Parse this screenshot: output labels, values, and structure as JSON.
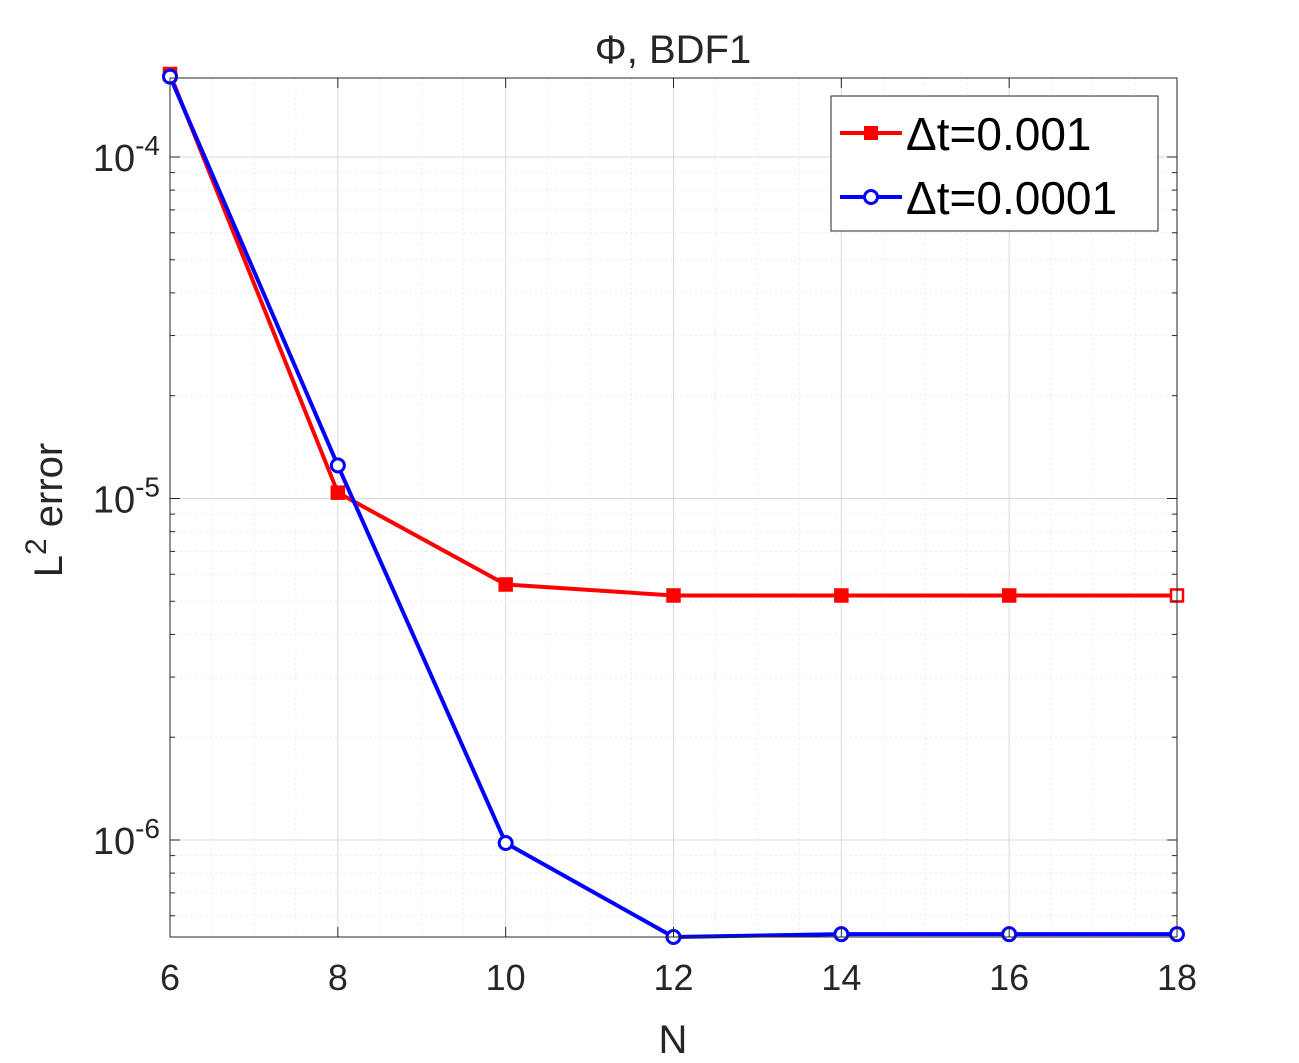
{
  "chart_data": {
    "type": "line",
    "title": "Φ, BDF1",
    "xlabel": "N",
    "ylabel": {
      "base": "L",
      "sup": "2",
      "rest": " error"
    },
    "x": [
      6,
      8,
      10,
      12,
      14,
      16,
      18
    ],
    "xlim": [
      6,
      18
    ],
    "xticks": [
      "6",
      "8",
      "10",
      "12",
      "14",
      "16",
      "18"
    ],
    "yscale": "log",
    "ylim": [
      5.2e-07,
      0.00018
    ],
    "yticks": [
      {
        "value": 1e-06,
        "base": "10",
        "exp": "-6"
      },
      {
        "value": 1e-05,
        "base": "10",
        "exp": "-5"
      },
      {
        "value": 0.0001,
        "base": "10",
        "exp": "-4"
      }
    ],
    "grid": true,
    "minor_grid": true,
    "legend_position": "top-right",
    "series": [
      {
        "name": "Δt=0.001",
        "color": "#ff0000",
        "marker": "square",
        "values": [
          0.000175,
          1.04e-05,
          5.6e-06,
          5.2e-06,
          5.2e-06,
          5.2e-06,
          5.2e-06
        ]
      },
      {
        "name": "Δt=0.0001",
        "color": "#0000ff",
        "marker": "circle",
        "values": [
          0.000172,
          1.25e-05,
          9.8e-07,
          5.2e-07,
          5.3e-07,
          5.3e-07,
          5.3e-07
        ]
      }
    ]
  }
}
